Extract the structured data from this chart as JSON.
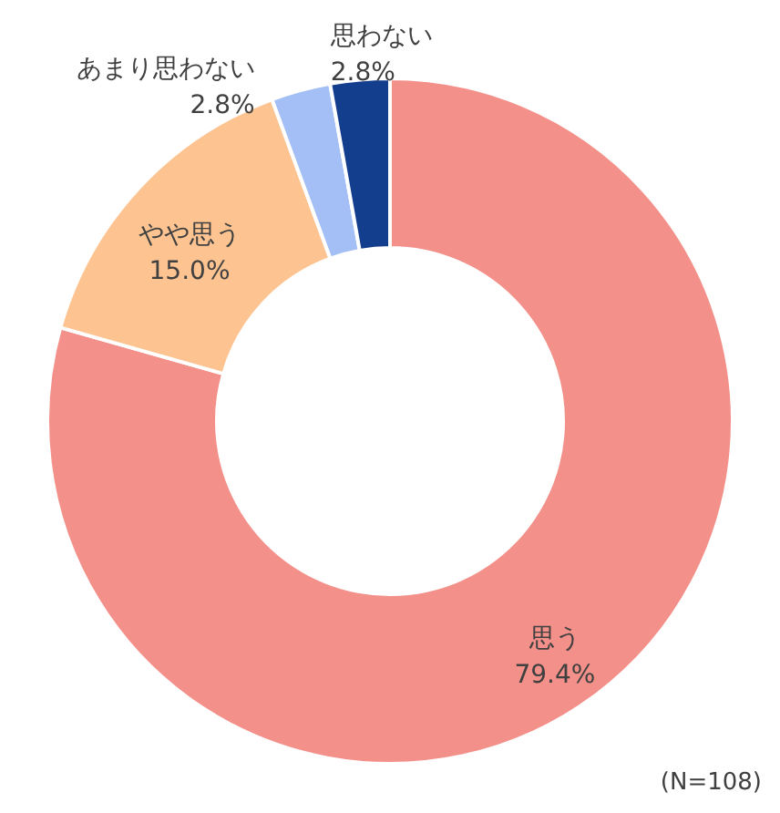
{
  "chart_data": {
    "type": "donut",
    "categories": [
      "思う",
      "やや思う",
      "あまり思わない",
      "思わない"
    ],
    "values": [
      79.4,
      15.0,
      2.8,
      2.8
    ],
    "colors": [
      "#f4908a",
      "#fdc491",
      "#a3bff5",
      "#133e8e"
    ],
    "value_labels": [
      "79.4%",
      "15.0%",
      "2.8%",
      "2.8%"
    ],
    "annotations": [
      "(N=108)"
    ]
  }
}
